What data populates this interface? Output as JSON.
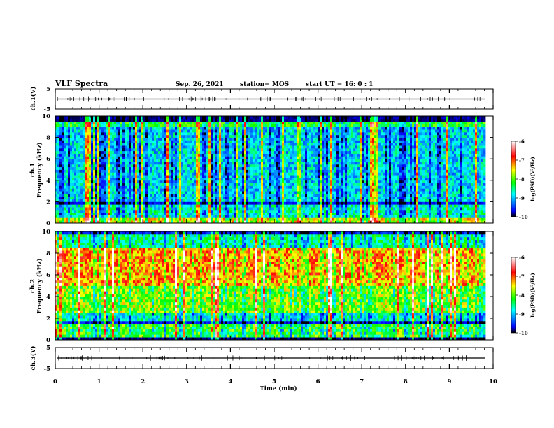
{
  "header": {
    "title": "VLF Spectra",
    "date": "Sep. 26, 2021",
    "station": "station= MOS",
    "start": "start  UT =   16: 0  : 1"
  },
  "chart_data": [
    {
      "type": "line",
      "name": "ch1-waveform",
      "ylabel": "ch.1(V)",
      "ylim": [
        -5,
        5
      ],
      "yticks": [
        "5",
        "-5"
      ],
      "x_range": [
        0,
        10
      ],
      "baseline": 0,
      "series_color": "#000000"
    },
    {
      "type": "heatmap",
      "name": "ch1-spectrogram",
      "ylabel_top": "ch.1",
      "ylabel_bottom": "Frequency (kHz)",
      "ylim": [
        0,
        10
      ],
      "yticks": [
        "0",
        "2",
        "4",
        "6",
        "8",
        "10"
      ],
      "x_range": [
        0,
        10
      ],
      "data_end_min": 9.83,
      "colorbar": {
        "label": "log(PSD)(V²/Hz)",
        "range": [
          -10,
          -6
        ],
        "ticks": [
          "-6",
          "-7",
          "-8",
          "-9",
          "-10"
        ],
        "colors": [
          "#000000",
          "#0000ff",
          "#00ffff",
          "#00ff00",
          "#ffff00",
          "#ff0000",
          "#ffffff"
        ]
      }
    },
    {
      "type": "heatmap",
      "name": "ch2-spectrogram",
      "ylabel_top": "ch.2",
      "ylabel_bottom": "Frequency (kHz)",
      "ylim": [
        0,
        10
      ],
      "yticks": [
        "0",
        "2",
        "4",
        "6",
        "8",
        "10"
      ],
      "x_range": [
        0,
        10
      ],
      "data_end_min": 9.83,
      "colorbar": {
        "label": "log(PSD)(V²/Hz)",
        "range": [
          -10,
          -6
        ],
        "ticks": [
          "-6",
          "-7",
          "-8",
          "-9",
          "-10"
        ],
        "colors": [
          "#000000",
          "#0000ff",
          "#00ffff",
          "#00ff00",
          "#ffff00",
          "#ff0000",
          "#ffffff"
        ]
      }
    },
    {
      "type": "line",
      "name": "ch3-waveform",
      "ylabel": "ch.3(V)",
      "ylim": [
        -5,
        5
      ],
      "yticks": [
        "5",
        "-5"
      ],
      "x_range": [
        0,
        10
      ],
      "baseline": 0,
      "series_color": "#000000",
      "xlabel": "Time  (min)",
      "xticks": [
        "0",
        "1",
        "2",
        "3",
        "4",
        "5",
        "6",
        "7",
        "8",
        "9",
        "10"
      ]
    }
  ]
}
